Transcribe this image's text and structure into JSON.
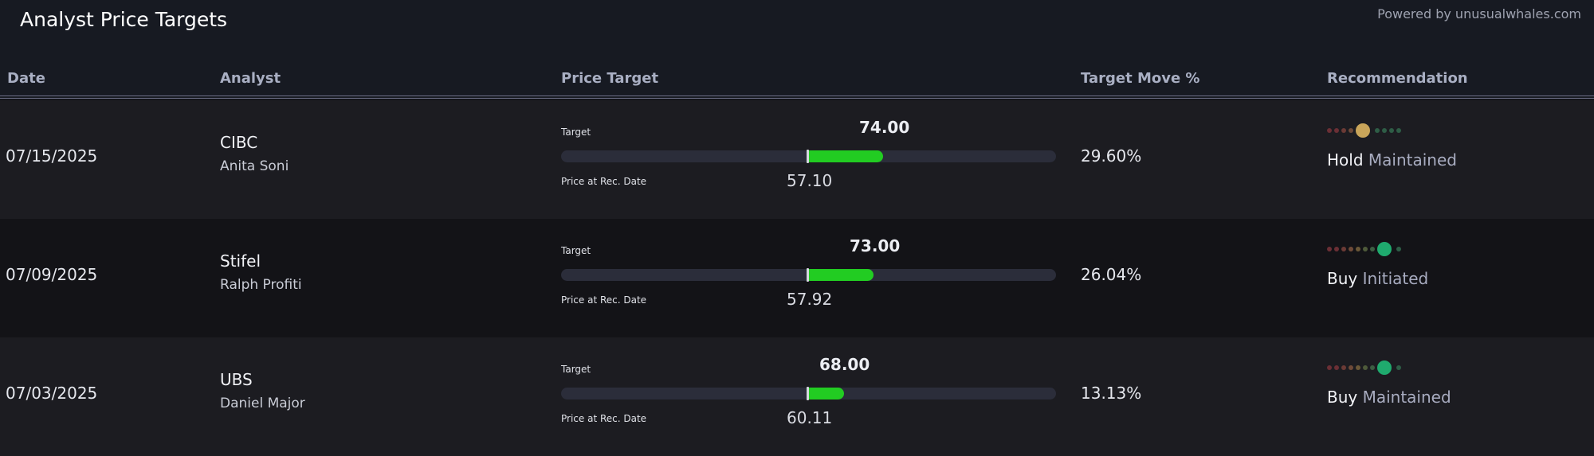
{
  "page": {
    "title": "Analyst Price Targets",
    "powered_by": "Powered by unusualwhales.com"
  },
  "columns": {
    "date": "Date",
    "analyst": "Analyst",
    "price_target": "Price Target",
    "target_move": "Target Move %",
    "recommendation": "Recommendation"
  },
  "labels": {
    "target": "Target",
    "price_at_rec": "Price at Rec. Date"
  },
  "colors": {
    "bar_fill": "#22cc22",
    "hold_dot": "#c9a55a",
    "buy_dot": "#1faa6e"
  },
  "rows": [
    {
      "date": "07/15/2025",
      "firm": "CIBC",
      "analyst": "Anita Soni",
      "target": "74.00",
      "price_at_rec": "57.10",
      "move": "29.60%",
      "rating": "Hold",
      "action": "Maintained",
      "rating_level": 4
    },
    {
      "date": "07/09/2025",
      "firm": "Stifel",
      "analyst": "Ralph Profiti",
      "target": "73.00",
      "price_at_rec": "57.92",
      "move": "26.04%",
      "rating": "Buy",
      "action": "Initiated",
      "rating_level": 7
    },
    {
      "date": "07/03/2025",
      "firm": "UBS",
      "analyst": "Daniel Major",
      "target": "68.00",
      "price_at_rec": "60.11",
      "move": "13.13%",
      "rating": "Buy",
      "action": "Maintained",
      "rating_level": 7
    }
  ]
}
